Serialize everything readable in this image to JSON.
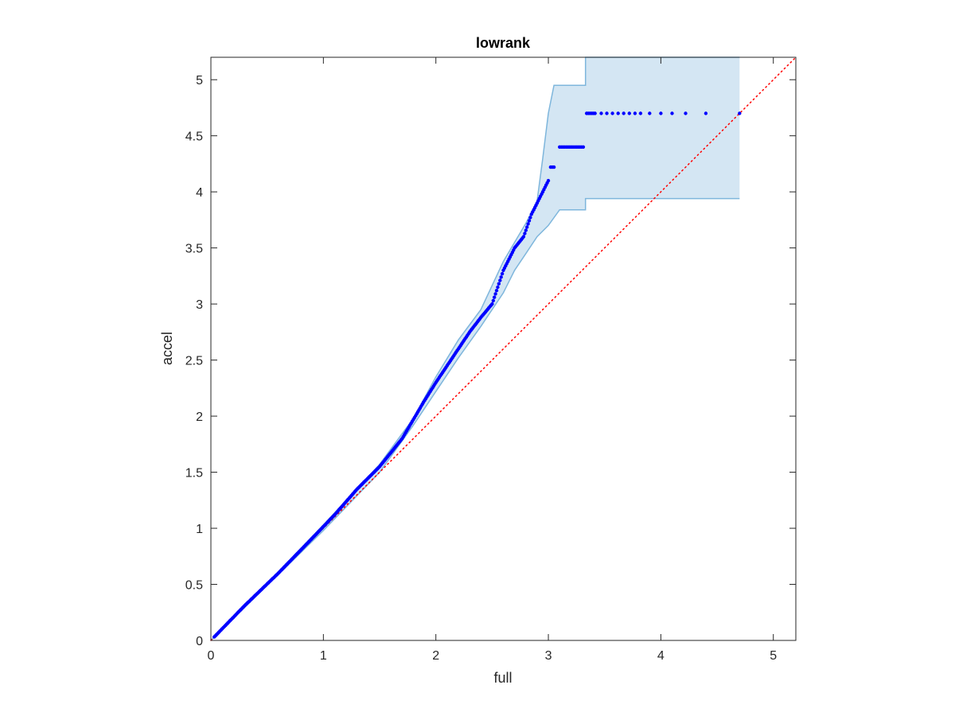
{
  "chart_data": {
    "type": "scatter",
    "title": "lowrank",
    "xlabel": "full",
    "ylabel": "accel",
    "xlim": [
      0,
      5.2
    ],
    "ylim": [
      0,
      5.2
    ],
    "xticks": [
      0,
      1,
      2,
      3,
      4,
      5
    ],
    "yticks": [
      0,
      0.5,
      1,
      1.5,
      2,
      2.5,
      3,
      3.5,
      4,
      4.5,
      5
    ],
    "xtick_labels": [
      "0",
      "1",
      "2",
      "3",
      "4",
      "5"
    ],
    "ytick_labels": [
      "0",
      "0.5",
      "1",
      "1.5",
      "2",
      "2.5",
      "3",
      "3.5",
      "4",
      "4.5",
      "5"
    ],
    "grid": false,
    "box": true,
    "series": [
      {
        "kind": "points",
        "color": "#0000ff",
        "curve": [
          [
            0.0,
            0.0
          ],
          [
            0.3,
            0.31
          ],
          [
            0.6,
            0.6
          ],
          [
            0.9,
            0.91
          ],
          [
            1.1,
            1.12
          ],
          [
            1.3,
            1.35
          ],
          [
            1.5,
            1.55
          ],
          [
            1.7,
            1.8
          ],
          [
            1.9,
            2.14
          ],
          [
            2.0,
            2.3
          ],
          [
            2.1,
            2.45
          ],
          [
            2.2,
            2.6
          ],
          [
            2.3,
            2.75
          ],
          [
            2.4,
            2.88
          ],
          [
            2.5,
            3.0
          ],
          [
            2.6,
            3.3
          ],
          [
            2.7,
            3.5
          ],
          [
            2.78,
            3.6
          ],
          [
            2.85,
            3.8
          ],
          [
            2.95,
            4.0
          ],
          [
            3.0,
            4.1
          ]
        ],
        "steps": [
          {
            "x0": 3.02,
            "x1": 3.06,
            "y": 4.22
          },
          {
            "x0": 3.1,
            "x1": 3.32,
            "y": 4.4
          },
          {
            "x0": 3.34,
            "x1": 3.42,
            "y": 4.7
          }
        ],
        "tail_x": [
          3.47,
          3.52,
          3.57,
          3.62,
          3.67,
          3.72,
          3.77,
          3.82,
          3.9,
          4.0,
          4.1,
          4.22,
          4.4,
          4.7
        ],
        "tail_y": 4.7
      },
      {
        "kind": "band",
        "color": "#d4e6f3",
        "edge_color": "#7eb6dc",
        "upper": [
          [
            0.0,
            0.0
          ],
          [
            0.5,
            0.51
          ],
          [
            1.0,
            1.03
          ],
          [
            1.5,
            1.57
          ],
          [
            1.8,
            1.98
          ],
          [
            2.0,
            2.35
          ],
          [
            2.2,
            2.68
          ],
          [
            2.4,
            2.95
          ],
          [
            2.6,
            3.38
          ],
          [
            2.7,
            3.55
          ],
          [
            2.8,
            3.72
          ],
          [
            2.9,
            3.92
          ],
          [
            2.95,
            4.3
          ],
          [
            3.0,
            4.7
          ],
          [
            3.05,
            4.95
          ],
          [
            3.33,
            4.95
          ],
          [
            3.33,
            5.2
          ],
          [
            4.7,
            5.2
          ]
        ],
        "lower": [
          [
            0.0,
            0.0
          ],
          [
            0.5,
            0.49
          ],
          [
            1.0,
            0.98
          ],
          [
            1.5,
            1.5
          ],
          [
            1.8,
            1.92
          ],
          [
            2.0,
            2.22
          ],
          [
            2.2,
            2.52
          ],
          [
            2.4,
            2.8
          ],
          [
            2.6,
            3.1
          ],
          [
            2.7,
            3.3
          ],
          [
            2.8,
            3.45
          ],
          [
            2.9,
            3.6
          ],
          [
            3.0,
            3.7
          ],
          [
            3.1,
            3.84
          ],
          [
            3.33,
            3.84
          ],
          [
            3.33,
            3.94
          ],
          [
            4.7,
            3.94
          ]
        ]
      },
      {
        "kind": "reference-line",
        "color": "#ff0000",
        "style": "dotted",
        "from": [
          0,
          0
        ],
        "to": [
          5.2,
          5.2
        ]
      }
    ]
  }
}
